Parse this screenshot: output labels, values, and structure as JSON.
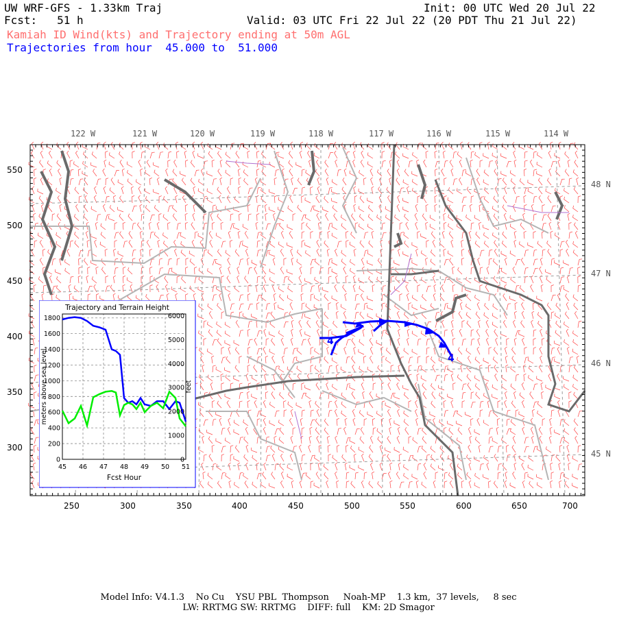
{
  "header": {
    "title": "UW WRF-GFS - 1.33km Traj",
    "fcst": "Fcst:   51 h",
    "init": "Init: 00 UTC Wed 20 Jul 22",
    "valid": "Valid: 03 UTC Fri 22 Jul 22 (20 PDT Thu 21 Jul 22)",
    "subtitle1": "Kamiah ID Wind(kts) and Trajectory ending at 50m AGL",
    "subtitle2": "Trajectories from hour  45.000 to  51.000",
    "colors": {
      "subtitle1": "#ff6e6e",
      "subtitle2": "#0000ff"
    }
  },
  "map": {
    "lon_labels": [
      "122 W",
      "121 W",
      "120 W",
      "119 W",
      "118 W",
      "117 W",
      "116 W",
      "115 W",
      "114 W"
    ],
    "lat_labels": [
      "48 N",
      "47 N",
      "46 N",
      "45 N"
    ],
    "x_ticks": [
      "250",
      "300",
      "350",
      "400",
      "450",
      "500",
      "550",
      "600",
      "650",
      "700"
    ],
    "y_ticks": [
      "550",
      "500",
      "450",
      "400",
      "350",
      "300"
    ],
    "trajectory_labels": [
      "4",
      "4"
    ],
    "colors": {
      "wind_barbs": "#ff4040",
      "trajectory": "#0000ff",
      "state_lines": "#707070",
      "county_lines": "#b0b0b0",
      "water": "#a050c0"
    }
  },
  "inset": {
    "title": "Trajectory and Terrain Height",
    "ylabel_left": "meters above sea level",
    "ylabel_right": "feet",
    "xlabel": "Fcst Hour",
    "left_ticks": [
      "1800",
      "1600",
      "1400",
      "1200",
      "1000",
      "800",
      "600",
      "400",
      "200",
      "0"
    ],
    "right_ticks": [
      "6000",
      "5000",
      "4000",
      "3000",
      "2000",
      "1000",
      "0"
    ],
    "x_ticks": [
      "45",
      "46",
      "47",
      "48",
      "49",
      "50",
      "51"
    ]
  },
  "chart_data": {
    "type": "line",
    "title": "Trajectory and Terrain Height",
    "xlabel": "Fcst Hour",
    "ylabel": "meters above sea level",
    "xlim": [
      45,
      51
    ],
    "ylim": [
      0,
      1850
    ],
    "series": [
      {
        "color": "#0000ff",
        "x": [
          45,
          45.3,
          45.6,
          45.9,
          46.2,
          46.5,
          46.8,
          47.1,
          47.4,
          47.6,
          47.8,
          48.0,
          48.2,
          48.4,
          48.6,
          48.8,
          49.0,
          49.3,
          49.6,
          49.9,
          50.2,
          50.5,
          50.7,
          51.0
        ],
        "values": [
          1780,
          1800,
          1810,
          1800,
          1760,
          1700,
          1680,
          1650,
          1400,
          1380,
          1330,
          780,
          720,
          740,
          700,
          780,
          700,
          680,
          740,
          740,
          640,
          740,
          720,
          480
        ]
      },
      {
        "color": "#00ee00",
        "x": [
          45,
          45.3,
          45.6,
          45.9,
          46.2,
          46.5,
          46.8,
          47.1,
          47.4,
          47.6,
          47.8,
          48.0,
          48.2,
          48.4,
          48.6,
          48.8,
          49.0,
          49.3,
          49.6,
          49.9,
          50.2,
          50.5,
          50.7,
          51.0
        ],
        "values": [
          620,
          460,
          520,
          680,
          430,
          790,
          830,
          860,
          870,
          850,
          560,
          690,
          720,
          700,
          640,
          720,
          600,
          680,
          720,
          650,
          860,
          780,
          520,
          420
        ]
      }
    ]
  },
  "footer": {
    "line1": "Model Info: V4.1.3    No Cu    YSU PBL  Thompson     Noah-MP    1.3 km,  37 levels,     8 sec",
    "line2": "LW: RRTMG SW: RRTMG    DIFF: full    KM: 2D Smagor"
  }
}
